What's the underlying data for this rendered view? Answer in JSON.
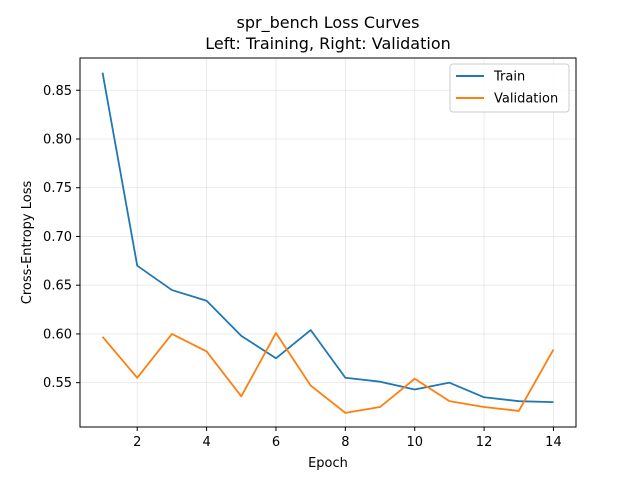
{
  "chart_data": {
    "type": "line",
    "title": "spr_bench Loss Curves",
    "subtitle": "Left: Training, Right: Validation",
    "xlabel": "Epoch",
    "ylabel": "Cross-Entropy Loss",
    "xlim": [
      0.35,
      14.65
    ],
    "ylim": [
      0.5045,
      0.8831
    ],
    "xticks": [
      2,
      4,
      6,
      8,
      10,
      12,
      14
    ],
    "yticks": [
      0.55,
      0.6,
      0.65,
      0.7,
      0.75,
      0.8,
      0.85
    ],
    "grid": true,
    "legend_position": "top-right",
    "x": [
      1,
      2,
      3,
      4,
      5,
      6,
      7,
      8,
      9,
      10,
      11,
      12,
      13,
      14
    ],
    "series": [
      {
        "name": "Train",
        "color": "#1f77b4",
        "values": [
          0.868,
          0.67,
          0.645,
          0.634,
          0.598,
          0.575,
          0.604,
          0.555,
          0.551,
          0.543,
          0.55,
          0.535,
          0.531,
          0.53
        ]
      },
      {
        "name": "Validation",
        "color": "#ff7f0e",
        "values": [
          0.597,
          0.555,
          0.6,
          0.582,
          0.536,
          0.601,
          0.547,
          0.519,
          0.525,
          0.554,
          0.531,
          0.525,
          0.521,
          0.584
        ]
      }
    ]
  }
}
